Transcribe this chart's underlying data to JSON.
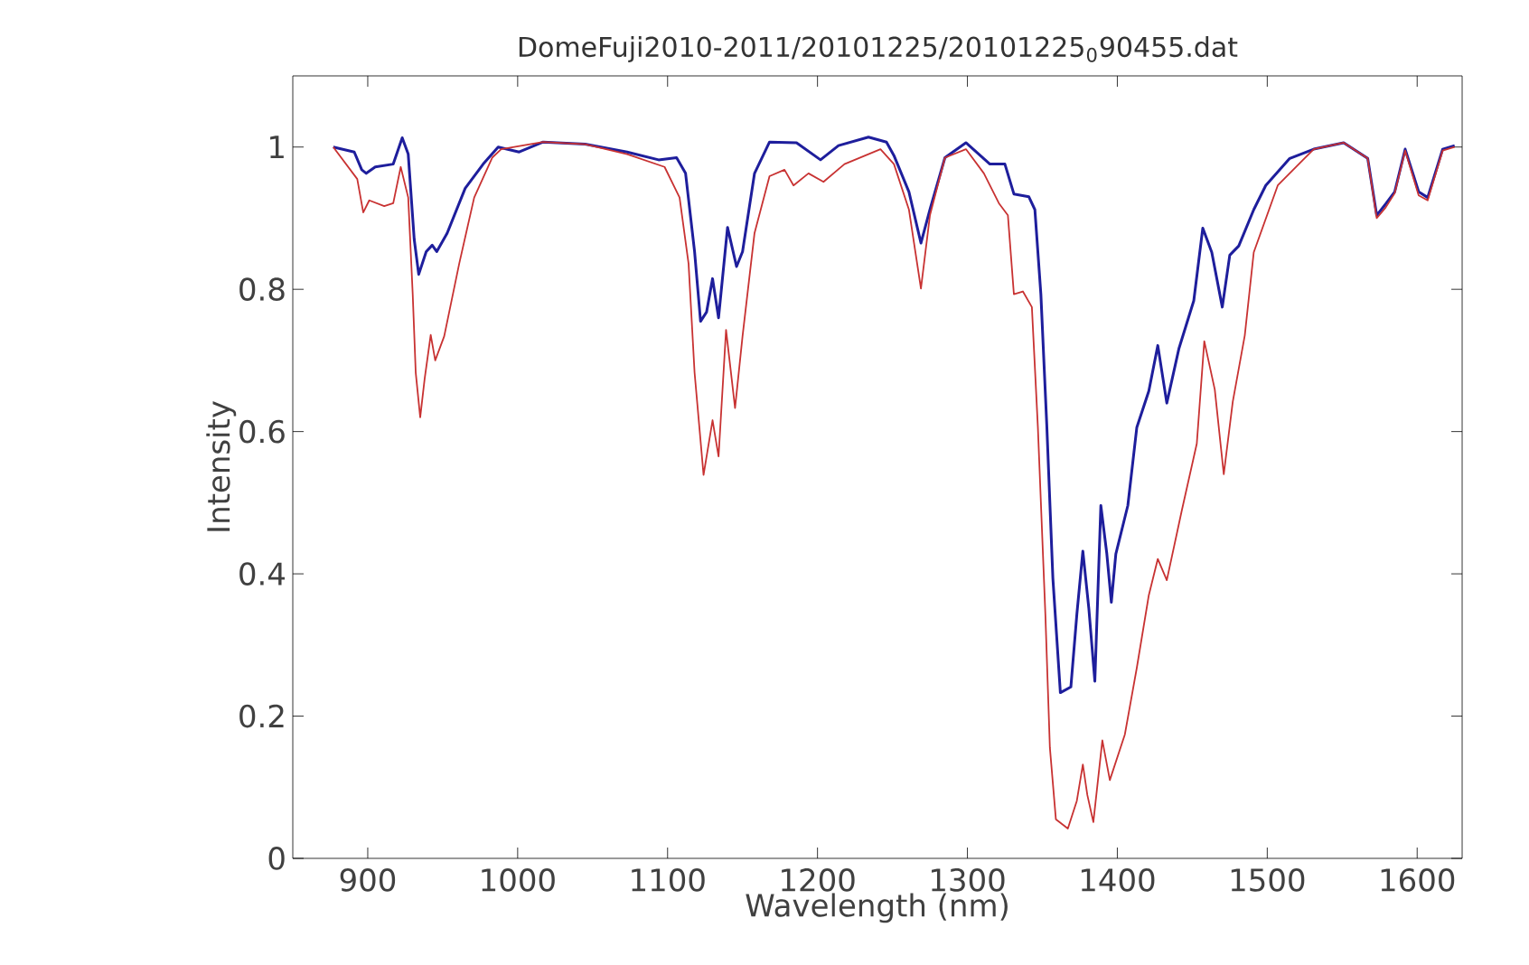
{
  "chart_data": {
    "type": "line",
    "title": "DomeFuji2010-2011/20101225/20101225$_{0}$90455.dat",
    "xlabel": "Wavelength (nm)",
    "ylabel": "Intensity",
    "xlim": [
      850,
      1630
    ],
    "ylim": [
      0,
      1.1
    ],
    "xticks": [
      900,
      1000,
      1100,
      1200,
      1300,
      1400,
      1500,
      1600
    ],
    "yticks": [
      0,
      0.2,
      0.4,
      0.6,
      0.8,
      1
    ],
    "grid": false,
    "marker": "none",
    "line_style": "solid",
    "series": [
      {
        "color": "#1e1e9c",
        "x": [
          877,
          891,
          896,
          899,
          905,
          917,
          923,
          927,
          931,
          934,
          939,
          943,
          946,
          953,
          965,
          977,
          987,
          1001,
          1017,
          1045,
          1073,
          1094,
          1106,
          1112,
          1118,
          1122,
          1126,
          1130,
          1134,
          1140,
          1146,
          1150,
          1158,
          1168,
          1186,
          1202,
          1214,
          1234,
          1246,
          1251,
          1261,
          1269,
          1275,
          1285,
          1299,
          1315,
          1325,
          1331,
          1341,
          1345,
          1349,
          1353,
          1357,
          1362,
          1369,
          1373,
          1377,
          1381,
          1385,
          1389,
          1393,
          1396,
          1399,
          1407,
          1413,
          1421,
          1427,
          1433,
          1441,
          1451,
          1457,
          1463,
          1470,
          1475,
          1481,
          1491,
          1499,
          1515,
          1531,
          1551,
          1567,
          1573,
          1579,
          1585,
          1592,
          1601,
          1607,
          1617,
          1625
        ],
        "values": [
          1.0,
          0.993,
          0.968,
          0.963,
          0.972,
          0.976,
          1.013,
          0.99,
          0.87,
          0.821,
          0.853,
          0.862,
          0.853,
          0.879,
          0.942,
          0.976,
          1.0,
          0.993,
          1.007,
          1.004,
          0.993,
          0.982,
          0.985,
          0.963,
          0.853,
          0.755,
          0.768,
          0.815,
          0.76,
          0.887,
          0.832,
          0.853,
          0.963,
          1.007,
          1.006,
          0.982,
          1.002,
          1.014,
          1.007,
          0.988,
          0.937,
          0.865,
          0.912,
          0.985,
          1.006,
          0.976,
          0.976,
          0.934,
          0.93,
          0.912,
          0.793,
          0.606,
          0.394,
          0.233,
          0.241,
          0.343,
          0.432,
          0.351,
          0.249,
          0.496,
          0.428,
          0.36,
          0.428,
          0.496,
          0.606,
          0.657,
          0.721,
          0.64,
          0.716,
          0.784,
          0.886,
          0.852,
          0.775,
          0.848,
          0.861,
          0.912,
          0.946,
          0.984,
          0.997,
          1.006,
          0.984,
          0.904,
          0.92,
          0.937,
          0.997,
          0.937,
          0.929,
          0.997,
          1.002
        ]
      },
      {
        "color": "#c83232",
        "x": [
          877,
          893,
          897,
          901,
          911,
          917,
          922,
          927,
          930,
          932,
          935,
          938,
          942,
          945,
          951,
          961,
          971,
          983,
          989,
          1017,
          1045,
          1073,
          1098,
          1108,
          1114,
          1118,
          1124,
          1130,
          1134,
          1139,
          1145,
          1150,
          1158,
          1168,
          1178,
          1184,
          1194,
          1204,
          1218,
          1242,
          1251,
          1261,
          1269,
          1275,
          1285,
          1299,
          1311,
          1321,
          1327,
          1331,
          1337,
          1343,
          1347,
          1352,
          1355,
          1359,
          1367,
          1373,
          1377,
          1380,
          1384,
          1390,
          1395,
          1405,
          1413,
          1421,
          1427,
          1433,
          1443,
          1453,
          1458,
          1465,
          1471,
          1477,
          1485,
          1491,
          1507,
          1523,
          1531,
          1551,
          1567,
          1573,
          1579,
          1585,
          1592,
          1601,
          1607,
          1617,
          1625
        ],
        "values": [
          1.0,
          0.955,
          0.908,
          0.925,
          0.917,
          0.921,
          0.972,
          0.929,
          0.793,
          0.683,
          0.62,
          0.675,
          0.736,
          0.7,
          0.734,
          0.836,
          0.929,
          0.985,
          0.997,
          1.007,
          1.004,
          0.99,
          0.972,
          0.929,
          0.836,
          0.683,
          0.539,
          0.616,
          0.565,
          0.743,
          0.633,
          0.734,
          0.879,
          0.959,
          0.968,
          0.946,
          0.963,
          0.951,
          0.976,
          0.997,
          0.976,
          0.912,
          0.801,
          0.904,
          0.985,
          0.997,
          0.963,
          0.921,
          0.904,
          0.793,
          0.797,
          0.775,
          0.606,
          0.343,
          0.156,
          0.055,
          0.042,
          0.081,
          0.132,
          0.089,
          0.051,
          0.166,
          0.11,
          0.174,
          0.268,
          0.37,
          0.421,
          0.391,
          0.489,
          0.583,
          0.727,
          0.659,
          0.54,
          0.642,
          0.735,
          0.852,
          0.946,
          0.98,
          0.997,
          1.006,
          0.984,
          0.9,
          0.915,
          0.935,
          0.995,
          0.932,
          0.925,
          0.995,
          1.0
        ]
      }
    ]
  }
}
